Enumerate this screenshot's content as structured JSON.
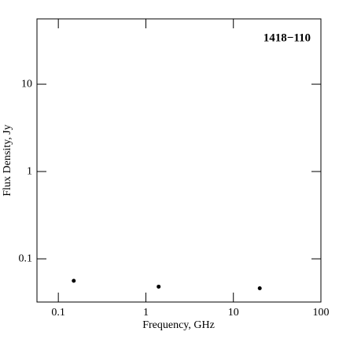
{
  "chart_data": {
    "type": "scatter",
    "annotation": "1418−110",
    "x_label": "Frequency, GHz",
    "y_label": "Flux Density, Jy",
    "x": [
      0.15,
      1.4,
      20
    ],
    "values": [
      0.056,
      0.048,
      0.046
    ],
    "color": "#000000",
    "log_x": true,
    "log_y": true,
    "xlim": [
      0.057,
      100
    ],
    "xticks": [
      0.1,
      1,
      10,
      100
    ],
    "ylim": [
      0.032,
      56
    ],
    "yticks": [
      0.1,
      1,
      10
    ]
  }
}
